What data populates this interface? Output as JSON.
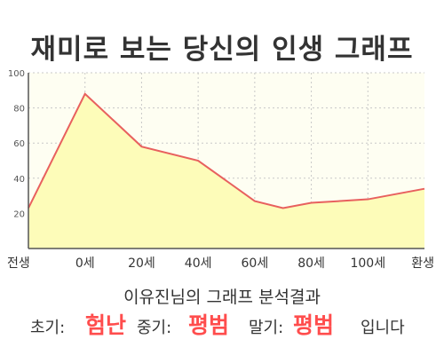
{
  "title": "재미로 보는 당신의 인생 그래프",
  "subtitle": "이유진님의 그래프 분석결과",
  "result": {
    "early_label": "초기:",
    "early_value": "험난",
    "mid_label": "중기:",
    "mid_value": "평범",
    "late_label": "말기:",
    "late_value": "평범",
    "ending": "입니다"
  },
  "colors": {
    "line": "#e8605e",
    "fill": "#fdfcb9",
    "plot_bg": "#fefef2",
    "result_accent": "#ff4d4d"
  },
  "chart_data": {
    "type": "area",
    "x_categories": [
      "전생",
      "0세",
      "20세",
      "40세",
      "60세",
      "80세",
      "100세",
      "환생"
    ],
    "series": [
      {
        "x": [
          -20,
          0,
          20,
          40,
          60,
          70,
          80,
          100,
          120
        ],
        "y": [
          23,
          88,
          58,
          50,
          27,
          23,
          26,
          28,
          34
        ]
      }
    ],
    "y_ticks": [
      20,
      40,
      60,
      80,
      100
    ],
    "ylim": [
      0,
      100
    ],
    "grid": true
  }
}
